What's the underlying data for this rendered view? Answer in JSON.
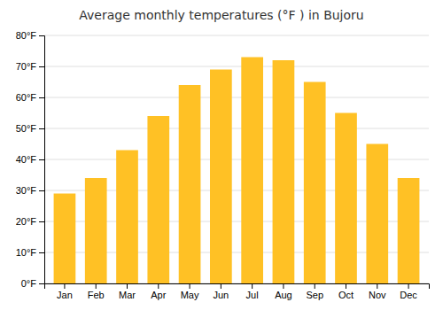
{
  "chart_data": {
    "type": "bar",
    "title": "Average monthly temperatures (°F ) in Bujoru",
    "categories": [
      "Jan",
      "Feb",
      "Mar",
      "Apr",
      "May",
      "Jun",
      "Jul",
      "Aug",
      "Sep",
      "Oct",
      "Nov",
      "Dec"
    ],
    "values": [
      29,
      34,
      43,
      54,
      64,
      69,
      73,
      72,
      65,
      55,
      45,
      34
    ],
    "color": "#FFC125",
    "ylim": [
      0,
      80
    ],
    "yticks": [
      {
        "value": 0,
        "label": "0°F"
      },
      {
        "value": 10,
        "label": "10°F"
      },
      {
        "value": 20,
        "label": "20°F"
      },
      {
        "value": 30,
        "label": "30°F"
      },
      {
        "value": 40,
        "label": "40°F"
      },
      {
        "value": 50,
        "label": "50°F"
      },
      {
        "value": 60,
        "label": "60°F"
      },
      {
        "value": 70,
        "label": "70°F"
      },
      {
        "value": 80,
        "label": "80°F"
      }
    ],
    "grid": true
  }
}
